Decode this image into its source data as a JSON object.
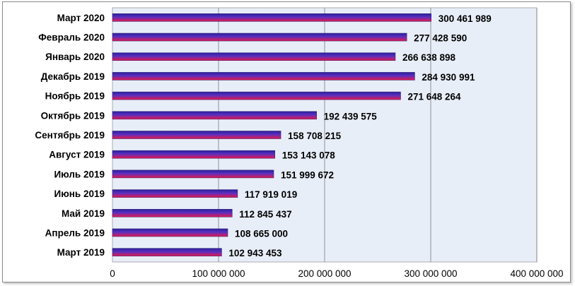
{
  "chart_data": {
    "type": "bar",
    "orientation": "horizontal",
    "categories": [
      "Март 2020",
      "Февраль 2020",
      "Январь 2020",
      "Декабрь 2019",
      "Ноябрь 2019",
      "Октябрь 2019",
      "Сентябрь 2019",
      "Август 2019",
      "Июль 2019",
      "Июнь 2019",
      "Май 2019",
      "Апрель 2019",
      "Март 2019"
    ],
    "values": [
      300461989,
      277428590,
      266638898,
      284930991,
      271648264,
      192439575,
      158708215,
      153143078,
      151999672,
      117919019,
      112845437,
      108665000,
      102943453
    ],
    "value_labels": [
      "300 461 989",
      "277 428 590",
      "266 638 898",
      "284 930 991",
      "271 648 264",
      "192 439 575",
      "158 708 215",
      "153 143 078",
      "151 999 672",
      "117 919 019",
      "112 845 437",
      "108 665 000",
      "102 943 453"
    ],
    "xlim": [
      0,
      400000000
    ],
    "x_ticks": [
      0,
      100000000,
      200000000,
      300000000,
      400000000
    ],
    "x_tick_labels": [
      "0",
      "100 000 000",
      "200 000 000",
      "300 000 000",
      "400 000 000"
    ],
    "grid": true,
    "legend": "none",
    "colors": {
      "bar_top": "#2b1f9e",
      "bar_middle": "#5b2fbf",
      "bar_bottom": "#e8174a",
      "plot_background": "#e8eef8",
      "gridline": "#7a7a7a"
    }
  }
}
